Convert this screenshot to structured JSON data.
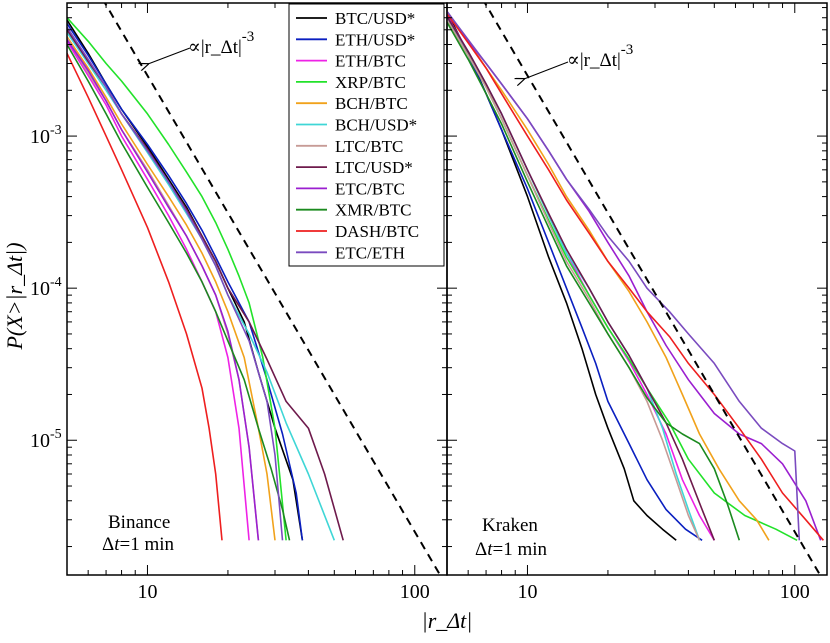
{
  "chart_data": {
    "type": "line",
    "title": "",
    "xlabel": "|r_Δt|",
    "ylabel": "P(X>|r_Δt|)",
    "xscale": "log",
    "yscale": "log",
    "xlim": [
      5,
      132
    ],
    "ylim": [
      1.3e-06,
      0.0075
    ],
    "y_ticks": [
      {
        "value": 0.001,
        "base": "10",
        "exp": "-3"
      },
      {
        "value": 0.0001,
        "base": "10",
        "exp": "-4"
      },
      {
        "value": 1e-05,
        "base": "10",
        "exp": "-5"
      }
    ],
    "x_ticks": [
      {
        "value": 10,
        "label": "10"
      },
      {
        "value": 100,
        "label": "100"
      }
    ],
    "legend": {
      "placement": "top-center",
      "entries": [
        {
          "name": "BTC/USD*",
          "color": "#000000"
        },
        {
          "name": "ETH/USD*",
          "color": "#0a1fc0"
        },
        {
          "name": "ETH/BTC",
          "color": "#ee22e6"
        },
        {
          "name": "XRP/BTC",
          "color": "#22e22a"
        },
        {
          "name": "BCH/BTC",
          "color": "#f1a21b"
        },
        {
          "name": "BCH/USD*",
          "color": "#3fd6d6"
        },
        {
          "name": "LTC/BTC",
          "color": "#c79b96"
        },
        {
          "name": "LTC/USD*",
          "color": "#6e1a4c"
        },
        {
          "name": "ETC/BTC",
          "color": "#9b1fd0"
        },
        {
          "name": "XMR/BTC",
          "color": "#1b8a1f"
        },
        {
          "name": "DASH/BTC",
          "color": "#ee1f1f"
        },
        {
          "name": "ETC/ETH",
          "color": "#7a4bbf"
        }
      ]
    },
    "reference_line": {
      "label": "∝|r_Δt|",
      "exponent": "-3",
      "slope": -3
    },
    "panels": [
      {
        "exchange": "Binance",
        "interval_prefix": "Δ",
        "interval_var": "t",
        "interval_value": "=1 min",
        "reference_anchor": {
          "x": 10,
          "y": 0.0025
        },
        "series": [
          {
            "name": "BTC/USD*",
            "x": [
              5,
              6,
              7,
              8,
              10,
              12,
              14,
              16,
              18,
              20,
              23,
              26,
              30,
              35,
              38
            ],
            "y": [
              0.0058,
              0.0035,
              0.0022,
              0.0015,
              0.00085,
              0.00052,
              0.00034,
              0.00022,
              0.00015,
              0.0001,
              6e-05,
              2.8e-05,
              1.2e-05,
              5.5e-06,
              2.2e-06
            ]
          },
          {
            "name": "ETH/USD*",
            "x": [
              5,
              6,
              7,
              8,
              10,
              12,
              14,
              16,
              18,
              20,
              24,
              28,
              32,
              36,
              38
            ],
            "y": [
              0.0055,
              0.0034,
              0.0022,
              0.0015,
              0.00088,
              0.00055,
              0.00036,
              0.00024,
              0.00016,
              0.00011,
              6e-05,
              2.5e-05,
              1.1e-05,
              4.5e-06,
              2.2e-06
            ]
          },
          {
            "name": "ETH/BTC",
            "x": [
              5,
              6,
              7,
              8,
              10,
              12,
              14,
              16,
              18,
              20,
              22,
              24
            ],
            "y": [
              0.0042,
              0.0025,
              0.0016,
              0.001,
              0.00052,
              0.0003,
              0.00018,
              0.00011,
              7e-05,
              3.5e-05,
              1.2e-05,
              2.2e-06
            ]
          },
          {
            "name": "XRP/BTC",
            "x": [
              5,
              6,
              7,
              8,
              10,
              12,
              14,
              16,
              18,
              20,
              22,
              24,
              27,
              30,
              33
            ],
            "y": [
              0.006,
              0.0042,
              0.003,
              0.0023,
              0.0014,
              0.00088,
              0.00058,
              0.0004,
              0.00027,
              0.00018,
              0.00012,
              8e-05,
              3.5e-05,
              1.2e-05,
              2.2e-06
            ]
          },
          {
            "name": "BCH/BTC",
            "x": [
              5,
              6,
              7,
              8,
              10,
              12,
              14,
              16,
              18,
              20,
              23,
              26,
              28,
              30
            ],
            "y": [
              0.0045,
              0.0028,
              0.0018,
              0.0012,
              0.00065,
              0.0004,
              0.00026,
              0.00017,
              0.00011,
              7e-05,
              3.5e-05,
              1.2e-05,
              6e-06,
              2.2e-06
            ]
          },
          {
            "name": "BCH/USD*",
            "x": [
              5,
              6,
              7,
              8,
              10,
              12,
              14,
              16,
              18,
              20,
              24,
              28,
              33,
              40,
              50
            ],
            "y": [
              0.0048,
              0.003,
              0.002,
              0.0014,
              0.00078,
              0.00048,
              0.00031,
              0.00021,
              0.00014,
              9e-05,
              5e-05,
              2.8e-05,
              1.3e-05,
              6e-06,
              2.2e-06
            ]
          },
          {
            "name": "LTC/BTC",
            "x": [
              5,
              6,
              7,
              8,
              10,
              12,
              14,
              16,
              18,
              20,
              22,
              24,
              26
            ],
            "y": [
              0.0044,
              0.0026,
              0.0017,
              0.0011,
              0.0006,
              0.00035,
              0.00022,
              0.00014,
              9e-05,
              5e-05,
              2.5e-05,
              9e-06,
              2.2e-06
            ]
          },
          {
            "name": "LTC/USD*",
            "x": [
              5,
              6,
              7,
              8,
              10,
              12,
              14,
              16,
              18,
              20,
              24,
              28,
              33,
              40,
              46,
              54
            ],
            "y": [
              0.005,
              0.0031,
              0.0021,
              0.0014,
              0.00082,
              0.0005,
              0.00033,
              0.00022,
              0.00015,
              0.0001,
              6e-05,
              3.4e-05,
              1.8e-05,
              1.2e-05,
              6e-06,
              2.2e-06
            ]
          },
          {
            "name": "ETC/BTC",
            "x": [
              5,
              6,
              7,
              8,
              10,
              12,
              14,
              16,
              18,
              20,
              22,
              24,
              26
            ],
            "y": [
              0.0043,
              0.0027,
              0.0017,
              0.0011,
              0.00058,
              0.00034,
              0.00022,
              0.00014,
              9e-05,
              5.2e-05,
              2.5e-05,
              9e-06,
              2.2e-06
            ]
          },
          {
            "name": "XMR/BTC",
            "x": [
              5,
              6,
              7,
              8,
              10,
              12,
              14,
              16,
              18,
              20,
              23,
              26,
              29,
              32,
              34
            ],
            "y": [
              0.004,
              0.0023,
              0.0014,
              0.0009,
              0.00046,
              0.00027,
              0.00017,
              0.00011,
              7e-05,
              4.5e-05,
              2.5e-05,
              1.2e-05,
              6.5e-06,
              3.5e-06,
              2.2e-06
            ]
          },
          {
            "name": "DASH/BTC",
            "x": [
              5,
              6,
              7,
              8,
              10,
              12,
              14,
              16,
              17,
              18,
              19
            ],
            "y": [
              0.0035,
              0.0018,
              0.001,
              0.0006,
              0.00025,
              0.00011,
              5e-05,
              2.2e-05,
              1.2e-05,
              6e-06,
              2.2e-06
            ]
          },
          {
            "name": "ETC/ETH",
            "x": [
              5,
              6,
              7,
              8,
              10,
              12,
              14,
              16,
              18,
              20,
              24,
              28,
              30,
              32
            ],
            "y": [
              0.0052,
              0.0032,
              0.0021,
              0.0014,
              0.0008,
              0.0005,
              0.00032,
              0.00021,
              0.00014,
              9e-05,
              4.5e-05,
              1.8e-05,
              8e-06,
              2.2e-06
            ]
          }
        ]
      },
      {
        "exchange": "Kraken",
        "interval_prefix": "Δ",
        "interval_var": "t",
        "interval_value": "=1 min",
        "reference_anchor": {
          "x": 10,
          "y": 0.0025
        },
        "series": [
          {
            "name": "BTC/USD*",
            "x": [
              5,
              6,
              7,
              8,
              10,
              12,
              14,
              16,
              18,
              20,
              23,
              25,
              28,
              32,
              36
            ],
            "y": [
              0.0065,
              0.0035,
              0.0019,
              0.0011,
              0.0004,
              0.00016,
              8e-05,
              4e-05,
              2e-05,
              1.2e-05,
              6.5e-06,
              4e-06,
              3.2e-06,
              2.6e-06,
              2.2e-06
            ]
          },
          {
            "name": "ETH/USD*",
            "x": [
              5,
              6,
              7,
              8,
              10,
              12,
              14,
              16,
              18,
              20,
              24,
              28,
              33,
              39,
              45
            ],
            "y": [
              0.006,
              0.0034,
              0.0019,
              0.0011,
              0.00045,
              0.0002,
              0.0001,
              5.5e-05,
              3.2e-05,
              1.8e-05,
              9.5e-06,
              5.5e-06,
              3.5e-06,
              2.6e-06,
              2.2e-06
            ]
          },
          {
            "name": "ETH/BTC",
            "x": [
              5,
              6,
              7,
              8,
              10,
              12,
              14,
              17,
              20,
              24,
              28,
              33,
              38,
              44,
              50
            ],
            "y": [
              0.0062,
              0.0036,
              0.0022,
              0.0014,
              0.0006,
              0.0003,
              0.00017,
              9e-05,
              5.5e-05,
              3.3e-05,
              2e-05,
              1.1e-05,
              5.5e-06,
              3.2e-06,
              2.2e-06
            ]
          },
          {
            "name": "XRP/BTC",
            "x": [
              5,
              6,
              7,
              8,
              10,
              12,
              14,
              17,
              20,
              24,
              28,
              34,
              40,
              50,
              65,
              85,
              102
            ],
            "y": [
              0.0058,
              0.0034,
              0.0021,
              0.0013,
              0.00055,
              0.00028,
              0.00016,
              9e-05,
              5.5e-05,
              3.4e-05,
              2.2e-05,
              1.3e-05,
              7.5e-06,
              4.5e-06,
              3.2e-06,
              2.6e-06,
              2.2e-06
            ]
          },
          {
            "name": "BCH/BTC",
            "x": [
              5,
              6,
              7,
              8,
              10,
              12,
              14,
              17,
              20,
              24,
              28,
              33,
              38,
              44,
              52,
              62,
              72,
              80
            ],
            "y": [
              0.0066,
              0.0042,
              0.0028,
              0.002,
              0.0011,
              0.00065,
              0.0004,
              0.00024,
              0.00015,
              9.5e-05,
              6e-05,
              3.5e-05,
              2e-05,
              1.1e-05,
              6.5e-06,
              4e-06,
              3e-06,
              2.2e-06
            ]
          },
          {
            "name": "BCH/USD*",
            "x": [
              5,
              6,
              7,
              8,
              10,
              12,
              14,
              17,
              20,
              24,
              28,
              32,
              36,
              40,
              44
            ],
            "y": [
              0.006,
              0.0036,
              0.0022,
              0.0014,
              0.0006,
              0.0003,
              0.00017,
              0.0001,
              6e-05,
              3.6e-05,
              2.2e-05,
              1.2e-05,
              6e-06,
              3.5e-06,
              2.2e-06
            ]
          },
          {
            "name": "LTC/BTC",
            "x": [
              5,
              6,
              7,
              8,
              10,
              12,
              14,
              17,
              20,
              24,
              28,
              32,
              36,
              40,
              44
            ],
            "y": [
              0.0058,
              0.0034,
              0.0021,
              0.0013,
              0.00055,
              0.00027,
              0.00015,
              8.5e-05,
              5e-05,
              3e-05,
              1.8e-05,
              1e-05,
              5.5e-06,
              3.2e-06,
              2.2e-06
            ]
          },
          {
            "name": "LTC/USD*",
            "x": [
              5,
              6,
              7,
              8,
              10,
              12,
              14,
              17,
              20,
              24,
              28,
              33,
              38,
              45,
              50
            ],
            "y": [
              0.0061,
              0.0036,
              0.0022,
              0.0014,
              0.0006,
              0.00031,
              0.00018,
              0.0001,
              6e-05,
              3.6e-05,
              2.2e-05,
              1.3e-05,
              7.5e-06,
              3.5e-06,
              2.2e-06
            ]
          },
          {
            "name": "ETC/BTC",
            "x": [
              5,
              6,
              7,
              8,
              10,
              12,
              14,
              17,
              20,
              24,
              28,
              33,
              40,
              50,
              62,
              75,
              90,
              110,
              125
            ],
            "y": [
              0.0063,
              0.0042,
              0.003,
              0.0022,
              0.0013,
              0.0008,
              0.00052,
              0.00032,
              0.0002,
              0.00012,
              7e-05,
              4.2e-05,
              2.5e-05,
              1.5e-05,
              1.1e-05,
              9.5e-06,
              7e-06,
              4e-06,
              2.2e-06
            ]
          },
          {
            "name": "XMR/BTC",
            "x": [
              5,
              6,
              7,
              8,
              10,
              12,
              14,
              17,
              20,
              24,
              28,
              33,
              38,
              44,
              50,
              56,
              62
            ],
            "y": [
              0.0056,
              0.0032,
              0.0019,
              0.0012,
              0.0005,
              0.00025,
              0.00014,
              8e-05,
              5e-05,
              3e-05,
              1.9e-05,
              1.3e-05,
              1.1e-05,
              9.5e-06,
              6.5e-06,
              3.8e-06,
              2.2e-06
            ]
          },
          {
            "name": "DASH/BTC",
            "x": [
              5,
              6,
              7,
              8,
              10,
              12,
              14,
              17,
              20,
              24,
              28,
              34,
              40,
              50,
              62,
              75,
              90,
              110,
              128
            ],
            "y": [
              0.0064,
              0.0041,
              0.0028,
              0.0019,
              0.001,
              0.0006,
              0.00038,
              0.00023,
              0.00015,
              0.0001,
              7e-05,
              4.8e-05,
              3.2e-05,
              2e-05,
              1.2e-05,
              7.5e-06,
              4.5e-06,
              3e-06,
              2.2e-06
            ]
          },
          {
            "name": "ETC/ETH",
            "x": [
              5,
              6,
              7,
              8,
              10,
              12,
              14,
              17,
              20,
              24,
              28,
              34,
              40,
              50,
              62,
              75,
              90,
              100,
              104
            ],
            "y": [
              0.0066,
              0.0043,
              0.003,
              0.0022,
              0.0013,
              0.0008,
              0.00052,
              0.00033,
              0.00022,
              0.00015,
              0.0001,
              7e-05,
              5e-05,
              3.2e-05,
              1.8e-05,
              1.2e-05,
              9.5e-06,
              8.5e-06,
              2.2e-06
            ]
          }
        ]
      }
    ]
  }
}
